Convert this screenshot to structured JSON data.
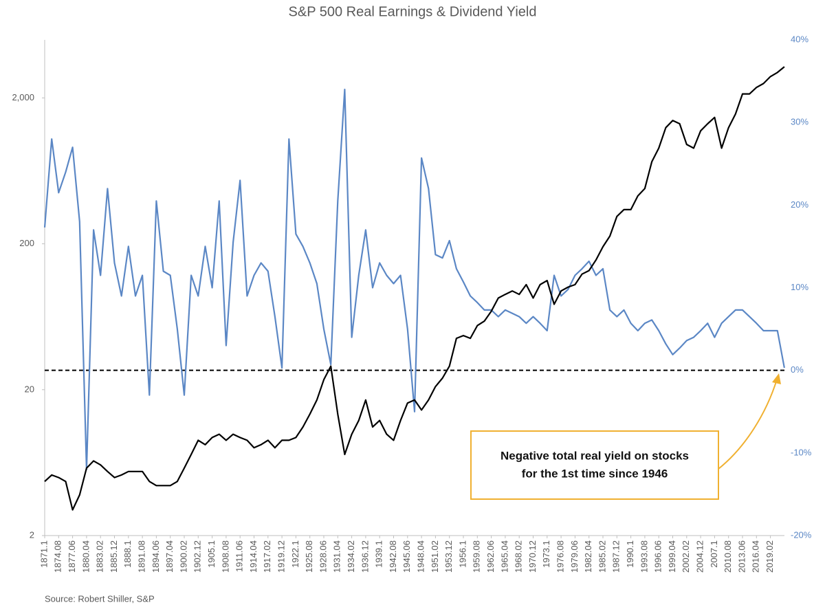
{
  "chart_data": {
    "type": "line",
    "title": "S&P 500 Real Earnings & Dividend Yield",
    "source": "Source: Robert Shiller, S&P",
    "annotation": [
      "Negative total real yield on stocks",
      "for the 1st time since 1946"
    ],
    "categories": [
      "1871.1",
      null,
      "1874.08",
      null,
      "1877.06",
      null,
      "1880.04",
      null,
      "1883.02",
      null,
      "1885.12",
      null,
      "1888.1",
      null,
      "1891.08",
      null,
      "1894.06",
      null,
      "1897.04",
      null,
      "1900.02",
      null,
      "1902.12",
      null,
      "1905.1",
      null,
      "1908.08",
      null,
      "1911.06",
      null,
      "1914.04",
      null,
      "1917.02",
      null,
      "1919.12",
      null,
      "1922.1",
      null,
      "1925.08",
      null,
      "1928.06",
      null,
      "1931.04",
      null,
      "1934.02",
      null,
      "1936.12",
      null,
      "1939.1",
      null,
      "1942.08",
      null,
      "1945.06",
      null,
      "1948.04",
      null,
      "1951.02",
      null,
      "1953.12",
      null,
      "1956.1",
      null,
      "1959.08",
      null,
      "1962.06",
      null,
      "1965.04",
      null,
      "1968.02",
      null,
      "1970.12",
      null,
      "1973.1",
      null,
      "1976.08",
      null,
      "1979.06",
      null,
      "1982.04",
      null,
      "1985.02",
      null,
      "1987.12",
      null,
      "1990.1",
      null,
      "1993.08",
      null,
      "1996.06",
      null,
      "1999.04",
      null,
      "2002.02",
      null,
      "2004.12",
      null,
      "2007.1",
      null,
      "2010.08",
      null,
      "2013.06",
      null,
      "2016.04",
      null,
      "2019.02",
      null,
      null
    ],
    "series": [
      {
        "color": "#000000",
        "axis": "y",
        "values": [
          4.7,
          5.2,
          5.0,
          4.7,
          3.0,
          3.8,
          5.8,
          6.5,
          6.1,
          5.5,
          5.0,
          5.2,
          5.5,
          5.5,
          5.5,
          4.7,
          4.4,
          4.4,
          4.4,
          4.7,
          5.8,
          7.2,
          9.0,
          8.4,
          9.4,
          9.9,
          9.0,
          9.9,
          9.4,
          9.0,
          8.0,
          8.4,
          9.0,
          8.0,
          9.0,
          9.0,
          9.4,
          11.1,
          13.6,
          17,
          23.4,
          29,
          13.6,
          7.2,
          9.9,
          12.3,
          17,
          11.1,
          12.3,
          9.9,
          9.0,
          12.3,
          16.2,
          17,
          14.5,
          17,
          21,
          24,
          29,
          45,
          47,
          45,
          55,
          59,
          69,
          85,
          90,
          95,
          90,
          105,
          85,
          105,
          112,
          77,
          95,
          101,
          105,
          124,
          131,
          155,
          191,
          226,
          308,
          343,
          343,
          426,
          478,
          730,
          905,
          1250,
          1400,
          1330,
          960,
          905,
          1190,
          1330,
          1470,
          905,
          1250,
          1550,
          2130,
          2130,
          2360,
          2510,
          2800,
          2990,
          3270
        ]
      },
      {
        "color": "#5b87c5",
        "axis": "y2",
        "values": [
          17.3,
          28,
          21.5,
          24,
          27,
          18,
          -12,
          17,
          11.5,
          22,
          13,
          9,
          15,
          9,
          11.5,
          -3,
          20.5,
          12,
          11.5,
          5,
          -3,
          11.5,
          9,
          15,
          10,
          20.5,
          3,
          15.5,
          23,
          9,
          11.5,
          13,
          12,
          6.5,
          0.3,
          28,
          16.5,
          15,
          13,
          10.5,
          5,
          0.7,
          20.5,
          34,
          4,
          11.5,
          17,
          10,
          13,
          11.5,
          10.5,
          11.5,
          5,
          -5,
          25.7,
          22,
          14,
          13.6,
          15.7,
          12.3,
          10.7,
          9,
          8.2,
          7.3,
          7.3,
          6.5,
          7.3,
          6.9,
          6.5,
          5.7,
          6.5,
          5.7,
          4.8,
          11.5,
          9,
          9.8,
          11.5,
          12.3,
          13.2,
          11.5,
          12.3,
          7.3,
          6.5,
          7.3,
          5.7,
          4.8,
          5.7,
          6.1,
          4.8,
          3.2,
          1.9,
          2.7,
          3.6,
          4,
          4.8,
          5.7,
          4,
          5.7,
          6.5,
          7.3,
          7.3,
          6.5,
          5.7,
          4.8,
          4.8,
          4.8,
          0.3
        ]
      }
    ],
    "ylog": true,
    "ylim": [
      2,
      5000
    ],
    "yticks": [
      2,
      20,
      200,
      {
        "value": 2000,
        "label": "2,000"
      }
    ],
    "y2lim": [
      -20,
      40
    ],
    "y2ticks": [
      {
        "value": -20,
        "label": "-20%"
      },
      {
        "value": -10,
        "label": "-10%"
      },
      {
        "value": 0,
        "label": "0%"
      },
      {
        "value": 10,
        "label": "10%"
      },
      {
        "value": 20,
        "label": "20%"
      },
      {
        "value": 30,
        "label": "30%"
      },
      {
        "value": 40,
        "label": "40%"
      }
    ],
    "y2_color": "#5b87c5",
    "reference_y2": 0,
    "annotation_color": "#f0b030"
  }
}
